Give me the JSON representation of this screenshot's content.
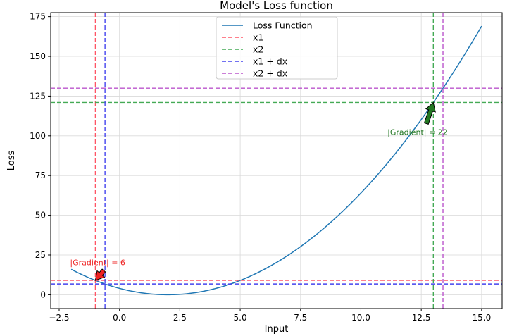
{
  "chart_data": {
    "type": "line",
    "title": "Model's Loss function",
    "xlabel": "Input",
    "ylabel": "Loss",
    "xlim": [
      -2.85,
      15.85
    ],
    "ylim": [
      -8.7,
      177.5
    ],
    "xticks": [
      -2.5,
      0.0,
      2.5,
      5.0,
      7.5,
      10.0,
      12.5,
      15.0
    ],
    "xtick_labels": [
      "−2.5",
      "0.0",
      "2.5",
      "5.0",
      "7.5",
      "10.0",
      "12.5",
      "15.0"
    ],
    "yticks": [
      0,
      25,
      50,
      75,
      100,
      125,
      150,
      175
    ],
    "ytick_labels": [
      "0",
      "25",
      "50",
      "75",
      "100",
      "125",
      "150",
      "175"
    ],
    "grid": true,
    "legend_position": "upper-center",
    "function": "(x - 2)^2",
    "curve_x_range": [
      -2,
      15
    ],
    "series": [
      {
        "name": "Loss Function",
        "kind": "curve",
        "color": "#1f77b4"
      },
      {
        "name": "x1",
        "kind": "dashed",
        "color": "#ff5566",
        "x": -1.0,
        "y": 9.0
      },
      {
        "name": "x2",
        "kind": "dashed",
        "color": "#44aa55",
        "x": 13.0,
        "y": 121.0
      },
      {
        "name": "x1 + dx",
        "kind": "dashed",
        "color": "#4444ee",
        "x": -0.6,
        "y": 6.76
      },
      {
        "name": "x2 + dx",
        "kind": "dashed",
        "color": "#bb55cc",
        "x": 13.4,
        "y": 129.96
      }
    ],
    "annotations": [
      {
        "text": "|Gradient| = 6",
        "color": "#ee2222",
        "x": -1.0,
        "y": 9.0,
        "text_x": -2.05,
        "text_y": 18.5
      },
      {
        "text": "|Gradient| = 22",
        "color": "#227722",
        "x": 13.0,
        "y": 121.0,
        "text_x": 11.1,
        "text_y": 100.5
      }
    ]
  }
}
